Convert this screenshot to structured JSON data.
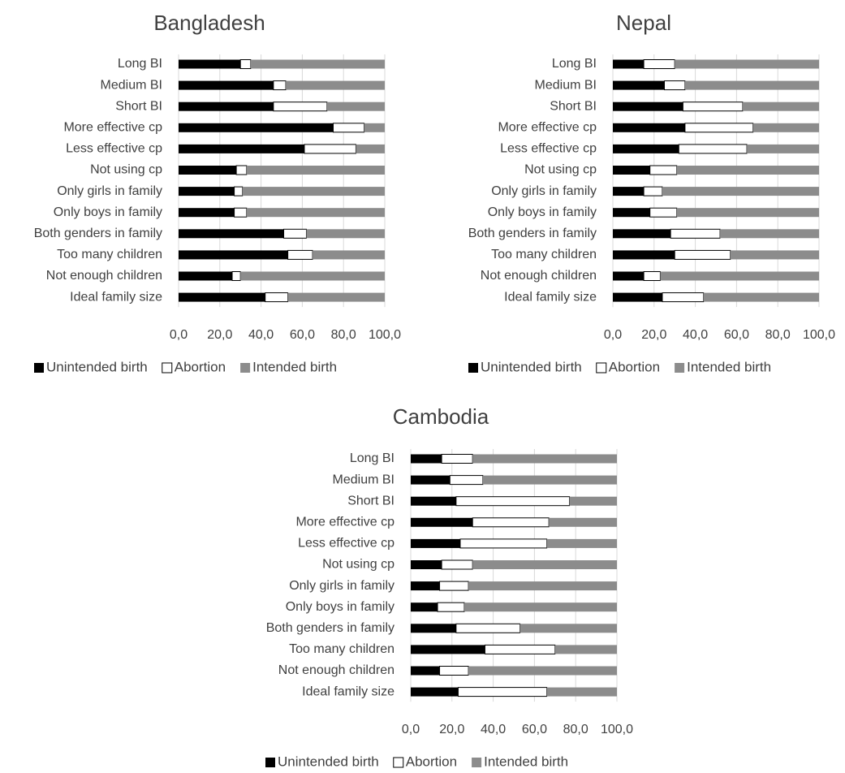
{
  "chart_data": [
    {
      "type": "bar",
      "orientation": "horizontal",
      "stacked": true,
      "title": "Bangladesh",
      "categories": [
        "Long BI",
        "Medium BI",
        "Short BI",
        "More effective cp",
        "Less effective cp",
        "Not using cp",
        "Only girls in family",
        "Only boys in family",
        "Both genders in family",
        "Too many children",
        "Not enough children",
        "Ideal family size"
      ],
      "series": [
        {
          "name": "Unintended birth",
          "color": "#000000",
          "values": [
            30,
            46,
            46,
            75,
            61,
            28,
            27,
            27,
            51,
            53,
            26,
            42
          ]
        },
        {
          "name": "Abortion",
          "color": "#ffffff",
          "values": [
            5,
            6,
            26,
            15,
            25,
            5,
            4,
            6,
            11,
            12,
            4,
            11
          ]
        },
        {
          "name": "Intended birth",
          "color": "#8c8c8c",
          "values": [
            65,
            48,
            28,
            10,
            14,
            67,
            69,
            67,
            38,
            35,
            70,
            47
          ]
        }
      ],
      "xlim": [
        0,
        100
      ],
      "xticks": [
        "0,0",
        "20,0",
        "40,0",
        "60,0",
        "80,0",
        "100,0"
      ],
      "grid": true,
      "legend": "bottom"
    },
    {
      "type": "bar",
      "orientation": "horizontal",
      "stacked": true,
      "title": "Nepal",
      "categories": [
        "Long BI",
        "Medium BI",
        "Short BI",
        "More effective cp",
        "Less effective cp",
        "Not using cp",
        "Only girls in family",
        "Only boys in family",
        "Both genders in family",
        "Too many children",
        "Not enough children",
        "Ideal family size"
      ],
      "series": [
        {
          "name": "Unintended birth",
          "color": "#000000",
          "values": [
            15,
            25,
            34,
            35,
            32,
            18,
            15,
            18,
            28,
            30,
            15,
            24
          ]
        },
        {
          "name": "Abortion",
          "color": "#ffffff",
          "values": [
            15,
            10,
            29,
            33,
            33,
            13,
            9,
            13,
            24,
            27,
            8,
            20
          ]
        },
        {
          "name": "Intended birth",
          "color": "#8c8c8c",
          "values": [
            70,
            65,
            37,
            32,
            35,
            69,
            76,
            69,
            48,
            43,
            77,
            56
          ]
        }
      ],
      "xlim": [
        0,
        100
      ],
      "xticks": [
        "0,0",
        "20,0",
        "40,0",
        "60,0",
        "80,0",
        "100,0"
      ],
      "grid": true,
      "legend": "bottom"
    },
    {
      "type": "bar",
      "orientation": "horizontal",
      "stacked": true,
      "title": "Cambodia",
      "categories": [
        "Long BI",
        "Medium BI",
        "Short BI",
        "More effective cp",
        "Less effective cp",
        "Not using cp",
        "Only girls in family",
        "Only boys in family",
        "Both genders in family",
        "Too many children",
        "Not enough children",
        "Ideal family size"
      ],
      "series": [
        {
          "name": "Unintended birth",
          "color": "#000000",
          "values": [
            15,
            19,
            22,
            30,
            24,
            15,
            14,
            13,
            22,
            36,
            14,
            23
          ]
        },
        {
          "name": "Abortion",
          "color": "#ffffff",
          "values": [
            15,
            16,
            55,
            37,
            42,
            15,
            14,
            13,
            31,
            34,
            14,
            43
          ]
        },
        {
          "name": "Intended birth",
          "color": "#8c8c8c",
          "values": [
            70,
            65,
            23,
            33,
            34,
            70,
            72,
            74,
            47,
            30,
            72,
            34
          ]
        }
      ],
      "xlim": [
        0,
        100
      ],
      "xticks": [
        "0,0",
        "20,0",
        "40,0",
        "60,0",
        "80,0",
        "100,0"
      ],
      "grid": true,
      "legend": "bottom"
    }
  ]
}
